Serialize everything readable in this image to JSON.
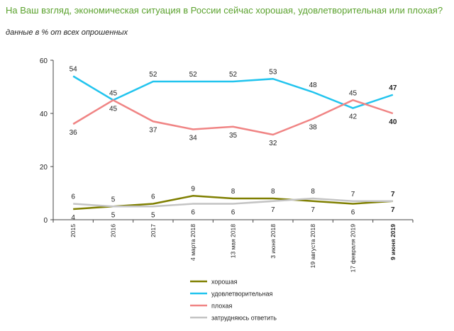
{
  "chart_data": {
    "type": "line",
    "title": "На Ваш взгляд, экономическая ситуация в России сейчас хорошая, удовлетворительная или плохая?",
    "subtitle": "данные в % от всех опрошенных",
    "categories": [
      "2015",
      "2016",
      "2017",
      "4 марта 2018",
      "13 мая 2018",
      "3 июня 2018",
      "19 августа 2018",
      "17 февраля 2019",
      "9 июня 2019"
    ],
    "ylim": [
      0,
      60
    ],
    "yticks": [
      0,
      20,
      40,
      60
    ],
    "grid": false,
    "legend_placement": "bottom",
    "series": [
      {
        "name": "хорошая",
        "color": "#7f7f00",
        "values": [
          4,
          5,
          6,
          9,
          8,
          8,
          7,
          6,
          7
        ],
        "label_pos": [
          "below",
          "below",
          "above",
          "above",
          "above",
          "above",
          "below",
          "below",
          "above"
        ]
      },
      {
        "name": "удовлетворительная",
        "color": "#22c4ee",
        "values": [
          54,
          45,
          52,
          52,
          52,
          53,
          48,
          42,
          47
        ],
        "label_pos": [
          "above",
          "above",
          "above",
          "above",
          "above",
          "above",
          "above",
          "below",
          "above"
        ]
      },
      {
        "name": "плохая",
        "color": "#f08484",
        "values": [
          36,
          45,
          37,
          34,
          35,
          32,
          38,
          45,
          40
        ],
        "label_pos": [
          "below",
          "below",
          "below",
          "below",
          "below",
          "below",
          "below",
          "above",
          "below"
        ]
      },
      {
        "name": "затрудняюсь ответить",
        "color": "#c4c4c4",
        "values": [
          6,
          5,
          5,
          6,
          6,
          7,
          8,
          7,
          7
        ],
        "label_pos": [
          "above",
          "above",
          "below",
          "below",
          "below",
          "below",
          "above",
          "above",
          "below"
        ]
      }
    ]
  }
}
